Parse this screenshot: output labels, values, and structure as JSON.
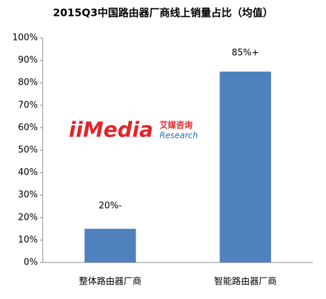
{
  "chart_data": {
    "type": "bar",
    "title": "2015Q3中国路由器厂商线上销量占比（均值）",
    "categories": [
      "整体路由器厂商",
      "智能路由器厂商"
    ],
    "values": [
      15,
      85
    ],
    "annotations": [
      "20%-",
      "85%+"
    ],
    "color": "#4f81bd",
    "ylim": [
      0,
      100
    ],
    "yticks": [
      {
        "value": 0,
        "label": "0%"
      },
      {
        "value": 10,
        "label": "10%"
      },
      {
        "value": 20,
        "label": "20%"
      },
      {
        "value": 30,
        "label": "30%"
      },
      {
        "value": 40,
        "label": "40%"
      },
      {
        "value": 50,
        "label": "50%"
      },
      {
        "value": 60,
        "label": "60%"
      },
      {
        "value": 70,
        "label": "70%"
      },
      {
        "value": 80,
        "label": "80%"
      },
      {
        "value": 90,
        "label": "90%"
      },
      {
        "value": 100,
        "label": "100%"
      }
    ],
    "grid": false,
    "watermark": {
      "brand": "iiMedia",
      "cn": "艾媒咨询",
      "sub": "Research"
    }
  }
}
